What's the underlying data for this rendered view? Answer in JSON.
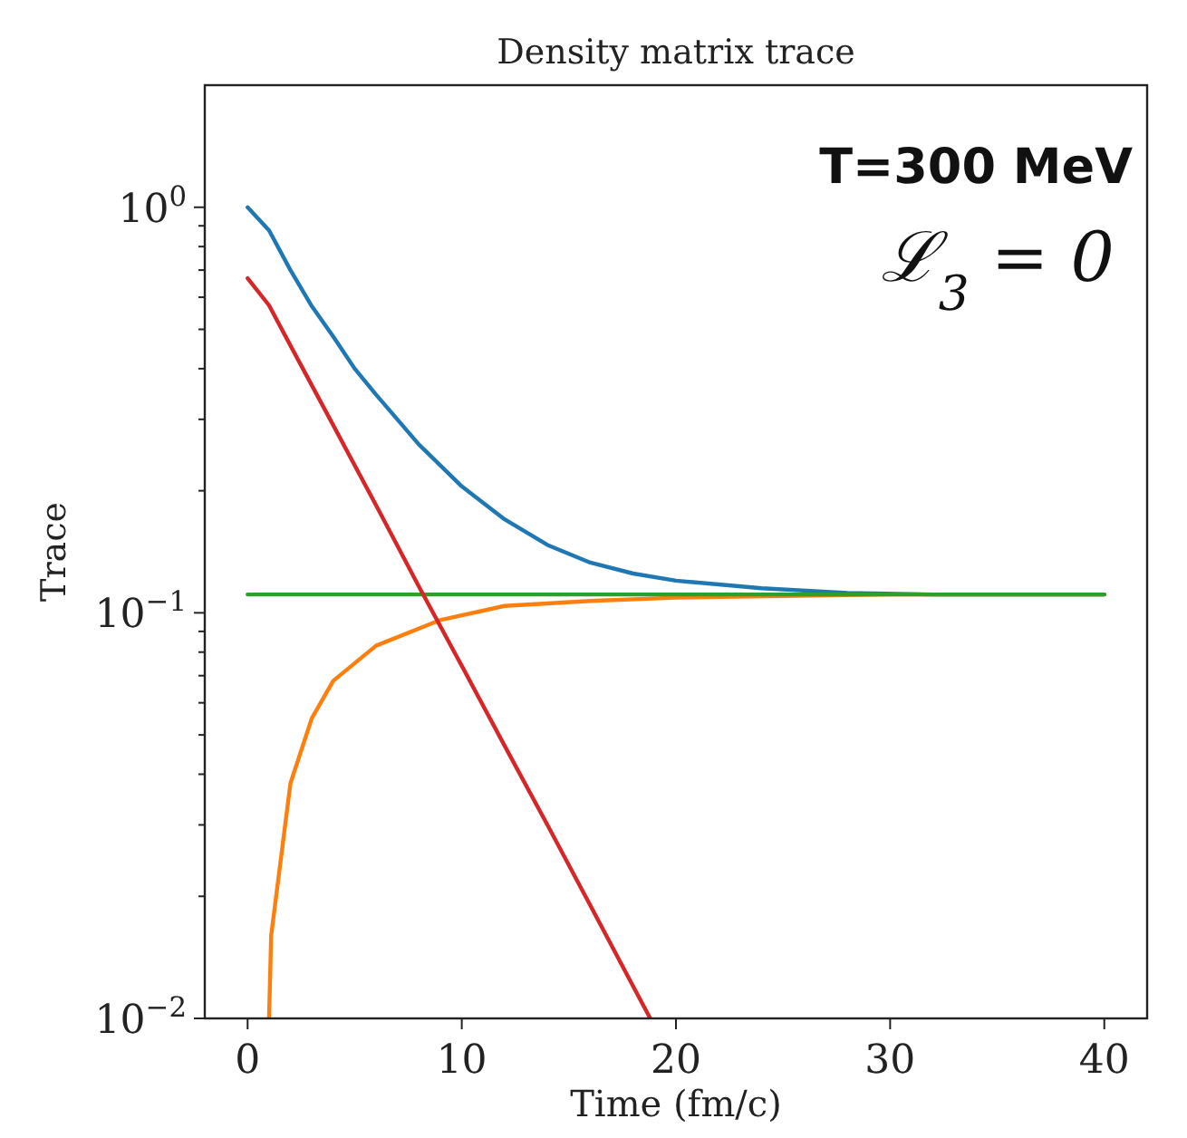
{
  "chart_data": {
    "type": "line",
    "title": "Density matrix trace",
    "xlabel": "Time (fm/c)",
    "ylabel": "Trace",
    "log": "y",
    "grid": false,
    "line_style": "solid",
    "xlim": [
      -2,
      42
    ],
    "xticks": [
      0,
      10,
      20,
      30,
      40
    ],
    "ylim": [
      0.01,
      2
    ],
    "yticks": [
      {
        "value": 0.01,
        "label": "10$^{−2}$"
      },
      {
        "value": 0.02,
        "label": null
      },
      {
        "value": 0.03,
        "label": null
      },
      {
        "value": 0.04,
        "label": null
      },
      {
        "value": 0.05,
        "label": null
      },
      {
        "value": 0.06,
        "label": null
      },
      {
        "value": 0.07,
        "label": null
      },
      {
        "value": 0.08,
        "label": null
      },
      {
        "value": 0.09,
        "label": null
      },
      {
        "value": 0.1,
        "label": "10$^{−1}$"
      },
      {
        "value": 0.2,
        "label": null
      },
      {
        "value": 0.3,
        "label": null
      },
      {
        "value": 0.4,
        "label": null
      },
      {
        "value": 0.5,
        "label": null
      },
      {
        "value": 0.6,
        "label": null
      },
      {
        "value": 0.7,
        "label": null
      },
      {
        "value": 0.8,
        "label": null
      },
      {
        "value": 0.9,
        "label": null
      },
      {
        "value": 1,
        "label": "10$^{0}$"
      }
    ],
    "annotations": [
      "T=300 MeV",
      "ℒ$_{3}$ = 0"
    ],
    "series": [
      {
        "color": "#1f77b4",
        "x": [
          0,
          1,
          2,
          3,
          4,
          5,
          6,
          8,
          10,
          12,
          14,
          16,
          18,
          20,
          24,
          28,
          32,
          40
        ],
        "values": [
          1,
          0.877,
          0.7,
          0.57,
          0.48,
          0.4,
          0.345,
          0.26,
          0.205,
          0.17,
          0.147,
          0.133,
          0.125,
          0.12,
          0.115,
          0.112,
          0.111,
          0.111
        ]
      },
      {
        "color": "#ff7f0e",
        "x": [
          1,
          1.1,
          2,
          3,
          4,
          6,
          9,
          12,
          16,
          20,
          25,
          30,
          40
        ],
        "values": [
          0.01,
          0.016,
          0.038,
          0.055,
          0.068,
          0.083,
          0.096,
          0.104,
          0.107,
          0.109,
          0.11,
          0.111,
          0.111
        ]
      },
      {
        "color": "#2ca02c",
        "x": [
          0,
          40
        ],
        "values": [
          0.111,
          0.111
        ]
      },
      {
        "color": "#d62728",
        "x": [
          0,
          1,
          2,
          4,
          6,
          8,
          10,
          12,
          14,
          16,
          18,
          18.8
        ],
        "values": [
          0.668,
          0.573,
          0.456,
          0.29,
          0.184,
          0.116,
          0.074,
          0.047,
          0.03,
          0.019,
          0.012,
          0.01
        ]
      }
    ]
  }
}
